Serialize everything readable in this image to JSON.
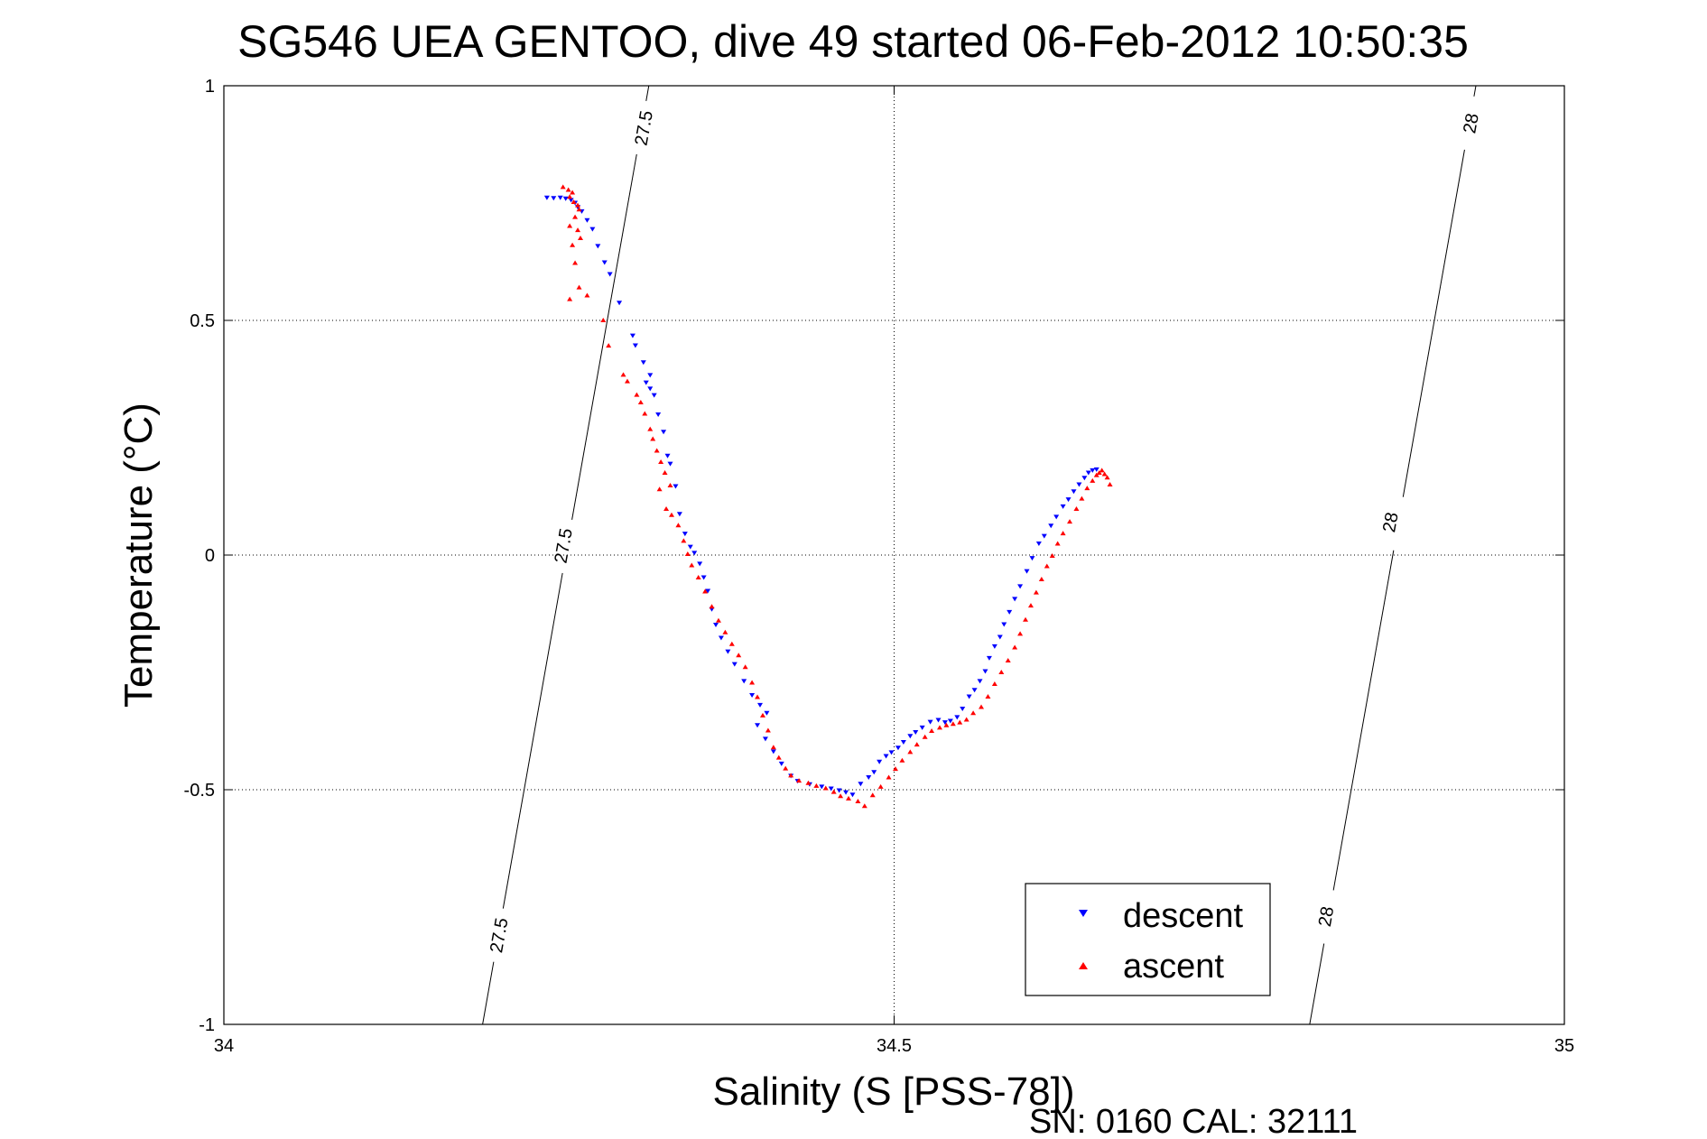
{
  "chart_data": {
    "type": "scatter",
    "title": "SG546 UEA GENTOO, dive 49 started 06-Feb-2012 10:50:35",
    "xlabel": "Salinity (S [PSS-78])",
    "ylabel": "Temperature (°C)",
    "xlim": [
      34,
      35
    ],
    "ylim": [
      -1,
      1
    ],
    "xticks": [
      34,
      34.5,
      35
    ],
    "xtick_labels": [
      "34",
      "34.5",
      "35"
    ],
    "yticks": [
      -1,
      -0.5,
      0,
      0.5,
      1
    ],
    "ytick_labels": [
      "-1",
      "-0.5",
      "0",
      "0.5",
      "1"
    ],
    "grid": true,
    "legend_position": "bottom-right",
    "footer": "SN: 0160  CAL: 32111",
    "colors": {
      "descent": "#0000ff",
      "ascent": "#ff0000",
      "contour": "#000000"
    },
    "contours": [
      {
        "label": "27.5",
        "points": [
          [
            34.193,
            -1.0
          ],
          [
            34.317,
            1.0
          ]
        ],
        "label_positions": [
          [
            34.205,
            -0.81
          ],
          [
            34.253,
            0.02
          ],
          [
            34.313,
            0.91
          ]
        ]
      },
      {
        "label": "28",
        "points": [
          [
            34.81,
            -1.0
          ],
          [
            34.934,
            1.0
          ]
        ],
        "label_positions": [
          [
            34.822,
            -0.77
          ],
          [
            34.87,
            0.07
          ],
          [
            34.93,
            0.92
          ]
        ]
      }
    ],
    "series": [
      {
        "name": "descent",
        "marker": "triangle-down",
        "points": [
          [
            34.241,
            0.762
          ],
          [
            34.246,
            0.761
          ],
          [
            34.251,
            0.762
          ],
          [
            34.255,
            0.76
          ],
          [
            34.259,
            0.757
          ],
          [
            34.262,
            0.751
          ],
          [
            34.264,
            0.742
          ],
          [
            34.267,
            0.733
          ],
          [
            34.271,
            0.714
          ],
          [
            34.275,
            0.695
          ],
          [
            34.279,
            0.659
          ],
          [
            34.284,
            0.624
          ],
          [
            34.288,
            0.599
          ],
          [
            34.295,
            0.538
          ],
          [
            34.305,
            0.468
          ],
          [
            34.307,
            0.447
          ],
          [
            34.313,
            0.411
          ],
          [
            34.315,
            0.368
          ],
          [
            34.318,
            0.355
          ],
          [
            34.321,
            0.341
          ],
          [
            34.318,
            0.384
          ],
          [
            34.324,
            0.3
          ],
          [
            34.328,
            0.263
          ],
          [
            34.331,
            0.212
          ],
          [
            34.333,
            0.195
          ],
          [
            34.337,
            0.147
          ],
          [
            34.34,
            0.088
          ],
          [
            34.344,
            0.046
          ],
          [
            34.348,
            0.018
          ],
          [
            34.351,
            0.005
          ],
          [
            34.355,
            -0.018
          ],
          [
            34.358,
            -0.047
          ],
          [
            34.361,
            -0.076
          ],
          [
            34.364,
            -0.115
          ],
          [
            34.367,
            -0.148
          ],
          [
            34.371,
            -0.176
          ],
          [
            34.376,
            -0.205
          ],
          [
            34.381,
            -0.232
          ],
          [
            34.388,
            -0.268
          ],
          [
            34.394,
            -0.298
          ],
          [
            34.4,
            -0.319
          ],
          [
            34.405,
            -0.336
          ],
          [
            34.398,
            -0.362
          ],
          [
            34.404,
            -0.391
          ],
          [
            34.41,
            -0.418
          ],
          [
            34.416,
            -0.444
          ],
          [
            34.423,
            -0.47
          ],
          [
            34.428,
            -0.481
          ],
          [
            34.437,
            -0.488
          ],
          [
            34.446,
            -0.493
          ],
          [
            34.453,
            -0.497
          ],
          [
            34.459,
            -0.501
          ],
          [
            34.464,
            -0.505
          ],
          [
            34.469,
            -0.51
          ],
          [
            34.475,
            -0.487
          ],
          [
            34.481,
            -0.473
          ],
          [
            34.485,
            -0.462
          ],
          [
            34.489,
            -0.44
          ],
          [
            34.494,
            -0.428
          ],
          [
            34.498,
            -0.42
          ],
          [
            34.503,
            -0.41
          ],
          [
            34.507,
            -0.398
          ],
          [
            34.512,
            -0.385
          ],
          [
            34.516,
            -0.377
          ],
          [
            34.521,
            -0.367
          ],
          [
            34.527,
            -0.355
          ],
          [
            34.533,
            -0.351
          ],
          [
            34.538,
            -0.356
          ],
          [
            34.542,
            -0.353
          ],
          [
            34.547,
            -0.345
          ],
          [
            34.551,
            -0.327
          ],
          [
            34.556,
            -0.301
          ],
          [
            34.56,
            -0.287
          ],
          [
            34.564,
            -0.268
          ],
          [
            34.568,
            -0.247
          ],
          [
            34.571,
            -0.219
          ],
          [
            34.575,
            -0.194
          ],
          [
            34.579,
            -0.174
          ],
          [
            34.582,
            -0.147
          ],
          [
            34.586,
            -0.121
          ],
          [
            34.59,
            -0.093
          ],
          [
            34.594,
            -0.066
          ],
          [
            34.599,
            -0.034
          ],
          [
            34.603,
            -0.006
          ],
          [
            34.608,
            0.025
          ],
          [
            34.612,
            0.041
          ],
          [
            34.617,
            0.063
          ],
          [
            34.621,
            0.082
          ],
          [
            34.626,
            0.104
          ],
          [
            34.63,
            0.119
          ],
          [
            34.634,
            0.136
          ],
          [
            34.638,
            0.151
          ],
          [
            34.642,
            0.165
          ],
          [
            34.645,
            0.176
          ],
          [
            34.648,
            0.181
          ],
          [
            34.651,
            0.183
          ]
        ]
      },
      {
        "name": "ascent",
        "marker": "triangle-up",
        "points": [
          [
            34.253,
            0.784
          ],
          [
            34.257,
            0.778
          ],
          [
            34.26,
            0.772
          ],
          [
            34.258,
            0.763
          ],
          [
            34.261,
            0.752
          ],
          [
            34.264,
            0.745
          ],
          [
            34.265,
            0.736
          ],
          [
            34.262,
            0.72
          ],
          [
            34.258,
            0.701
          ],
          [
            34.264,
            0.692
          ],
          [
            34.266,
            0.675
          ],
          [
            34.26,
            0.66
          ],
          [
            34.262,
            0.622
          ],
          [
            34.265,
            0.57
          ],
          [
            34.258,
            0.545
          ],
          [
            34.271,
            0.553
          ],
          [
            34.283,
            0.5
          ],
          [
            34.287,
            0.446
          ],
          [
            34.298,
            0.384
          ],
          [
            34.301,
            0.37
          ],
          [
            34.308,
            0.341
          ],
          [
            34.311,
            0.325
          ],
          [
            34.314,
            0.301
          ],
          [
            34.318,
            0.268
          ],
          [
            34.32,
            0.247
          ],
          [
            34.323,
            0.222
          ],
          [
            34.326,
            0.198
          ],
          [
            34.329,
            0.175
          ],
          [
            34.325,
            0.14
          ],
          [
            34.333,
            0.148
          ],
          [
            34.33,
            0.098
          ],
          [
            34.334,
            0.085
          ],
          [
            34.339,
            0.063
          ],
          [
            34.343,
            0.03
          ],
          [
            34.346,
            0.002
          ],
          [
            34.349,
            -0.022
          ],
          [
            34.354,
            -0.048
          ],
          [
            34.359,
            -0.078
          ],
          [
            34.364,
            -0.11
          ],
          [
            34.369,
            -0.14
          ],
          [
            34.374,
            -0.165
          ],
          [
            34.379,
            -0.19
          ],
          [
            34.384,
            -0.214
          ],
          [
            34.389,
            -0.239
          ],
          [
            34.394,
            -0.272
          ],
          [
            34.398,
            -0.303
          ],
          [
            34.402,
            -0.342
          ],
          [
            34.406,
            -0.374
          ],
          [
            34.41,
            -0.41
          ],
          [
            34.414,
            -0.432
          ],
          [
            34.419,
            -0.455
          ],
          [
            34.423,
            -0.47
          ],
          [
            34.429,
            -0.481
          ],
          [
            34.436,
            -0.486
          ],
          [
            34.442,
            -0.492
          ],
          [
            34.449,
            -0.497
          ],
          [
            34.455,
            -0.505
          ],
          [
            34.46,
            -0.514
          ],
          [
            34.466,
            -0.519
          ],
          [
            34.473,
            -0.525
          ],
          [
            34.478,
            -0.535
          ],
          [
            34.484,
            -0.512
          ],
          [
            34.49,
            -0.494
          ],
          [
            34.496,
            -0.474
          ],
          [
            34.501,
            -0.456
          ],
          [
            34.506,
            -0.438
          ],
          [
            34.512,
            -0.42
          ],
          [
            34.517,
            -0.404
          ],
          [
            34.523,
            -0.388
          ],
          [
            34.528,
            -0.375
          ],
          [
            34.534,
            -0.368
          ],
          [
            34.539,
            -0.363
          ],
          [
            34.544,
            -0.36
          ],
          [
            34.549,
            -0.357
          ],
          [
            34.554,
            -0.351
          ],
          [
            34.559,
            -0.337
          ],
          [
            34.565,
            -0.324
          ],
          [
            34.57,
            -0.302
          ],
          [
            34.575,
            -0.275
          ],
          [
            34.58,
            -0.25
          ],
          [
            34.585,
            -0.225
          ],
          [
            34.59,
            -0.197
          ],
          [
            34.594,
            -0.168
          ],
          [
            34.598,
            -0.138
          ],
          [
            34.602,
            -0.108
          ],
          [
            34.606,
            -0.08
          ],
          [
            34.61,
            -0.052
          ],
          [
            34.614,
            -0.024
          ],
          [
            34.618,
            -0.002
          ],
          [
            34.622,
            0.024
          ],
          [
            34.626,
            0.046
          ],
          [
            34.631,
            0.071
          ],
          [
            34.636,
            0.098
          ],
          [
            34.64,
            0.12
          ],
          [
            34.644,
            0.142
          ],
          [
            34.648,
            0.158
          ],
          [
            34.651,
            0.17
          ],
          [
            34.653,
            0.175
          ],
          [
            34.655,
            0.18
          ],
          [
            34.657,
            0.172
          ],
          [
            34.659,
            0.165
          ],
          [
            34.661,
            0.15
          ]
        ]
      }
    ]
  }
}
